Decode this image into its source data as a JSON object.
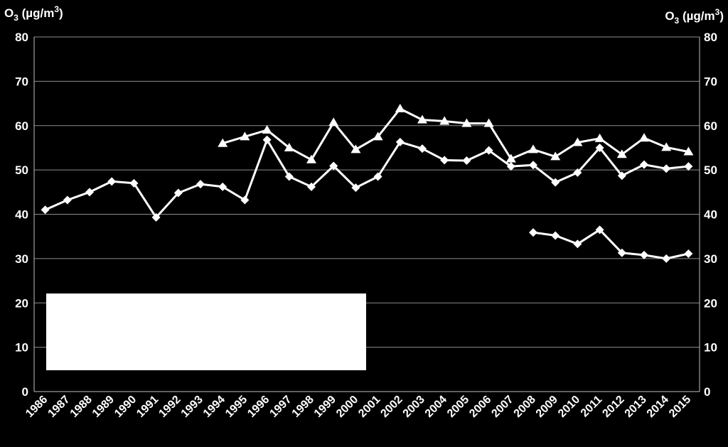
{
  "chart_data": {
    "type": "line",
    "ylabel_left": {
      "main": "O",
      "sub": "3",
      "unit_prefix": " (µg/m",
      "sup": "3",
      "unit_suffix": ")"
    },
    "ylabel_right": {
      "main": "O",
      "sub": "3",
      "unit_prefix": " (µg/m",
      "sup": "3",
      "unit_suffix": ")"
    },
    "ylim": [
      0,
      80
    ],
    "yticks": [
      0,
      10,
      20,
      30,
      40,
      50,
      60,
      70,
      80
    ],
    "grid": true,
    "categories": [
      "1986",
      "1987",
      "1988",
      "1989",
      "1990",
      "1991",
      "1992",
      "1993",
      "1994",
      "1995",
      "1996",
      "1997",
      "1998",
      "1999",
      "2000",
      "2001",
      "2002",
      "2003",
      "2004",
      "2005",
      "2006",
      "2007",
      "2008",
      "2009",
      "2010",
      "2011",
      "2012",
      "2013",
      "2014",
      "2015"
    ],
    "series": [
      {
        "marker": "triangle",
        "color": "#ffffff",
        "values": [
          null,
          null,
          null,
          null,
          null,
          null,
          null,
          null,
          56.0,
          57.5,
          59.0,
          55.0,
          52.3,
          60.7,
          54.6,
          57.5,
          63.8,
          61.3,
          61.0,
          60.5,
          60.5,
          52.5,
          54.6,
          53.0,
          56.2,
          57.1,
          53.5,
          57.2,
          55.1,
          54.1
        ]
      },
      {
        "marker": "diamond",
        "color": "#ffffff",
        "values": [
          41.0,
          43.2,
          45.0,
          47.4,
          47.0,
          39.3,
          44.8,
          46.8,
          46.2,
          43.2,
          56.8,
          48.5,
          46.2,
          50.9,
          46.0,
          48.5,
          56.3,
          54.8,
          52.2,
          52.1,
          54.4,
          50.8,
          51.1,
          47.2,
          49.4,
          55.0,
          48.7,
          51.2,
          50.3,
          50.8
        ]
      },
      {
        "marker": "diamond",
        "color": "#ffffff",
        "values": [
          null,
          null,
          null,
          null,
          null,
          null,
          null,
          null,
          null,
          null,
          null,
          null,
          null,
          null,
          null,
          null,
          null,
          null,
          null,
          null,
          null,
          null,
          35.9,
          35.2,
          33.3,
          36.5,
          31.3,
          30.8,
          30.0,
          31.1
        ]
      }
    ]
  },
  "legend_box": {
    "color": "#ffffff"
  }
}
